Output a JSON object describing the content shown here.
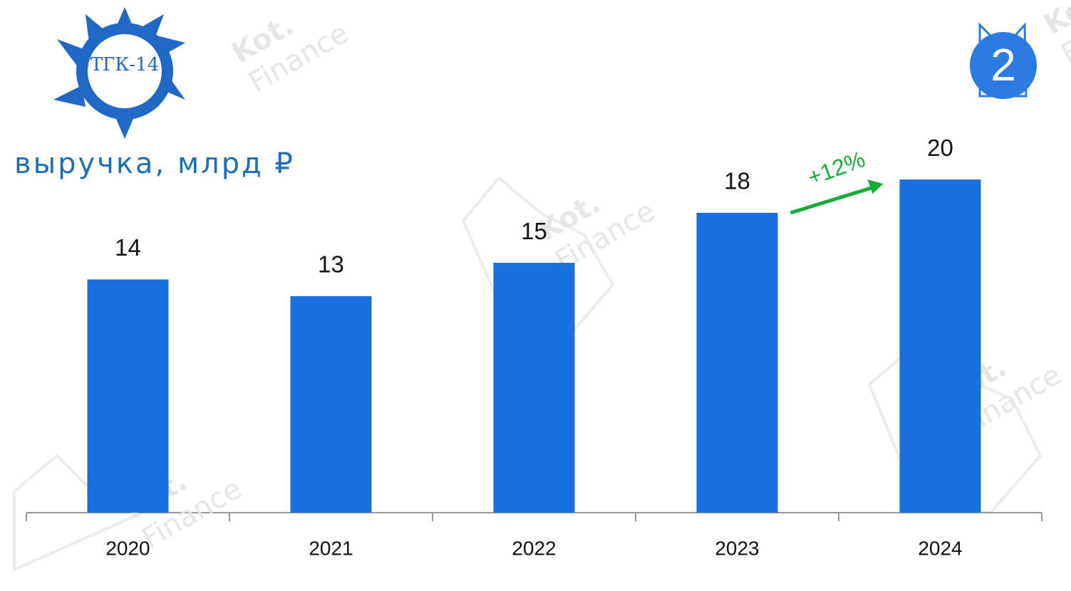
{
  "chart_data": {
    "type": "bar",
    "title": "выручка, млрд ₽",
    "categories": [
      "2020",
      "2021",
      "2022",
      "2023",
      "2024"
    ],
    "values": [
      14,
      13,
      15,
      18,
      20
    ],
    "color": "#1a6fdc",
    "ylim": [
      0,
      21.5
    ],
    "annotation": "+12%",
    "annotation_color": "#1aaa3a",
    "logo_text": "ТГК-14",
    "badge": "2",
    "watermark_brand": "Kot.",
    "watermark_sub": "Finance"
  }
}
